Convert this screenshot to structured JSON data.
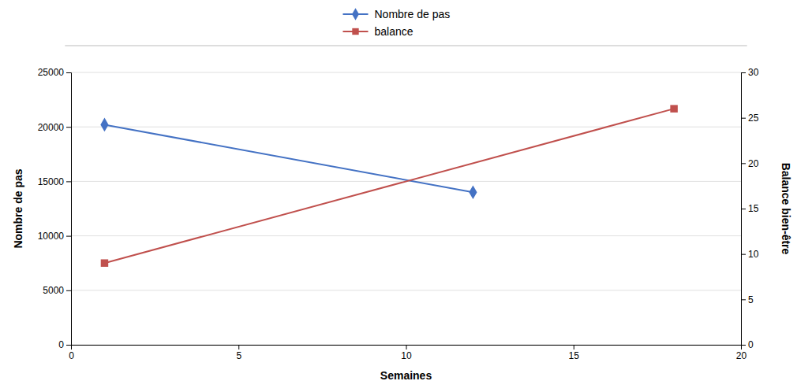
{
  "chart_data": {
    "type": "line",
    "xlabel": "Semaines",
    "ylabel": "Nombre de pas",
    "y2label": "Balance bien-être",
    "series": [
      {
        "name": "Nombre de pas",
        "color": "#4472C4",
        "marker": "diamond",
        "x": [
          1,
          12
        ],
        "values": [
          20200,
          14000
        ]
      },
      {
        "name": "balance",
        "color": "#C0504D",
        "marker": "square",
        "axis": "y2",
        "x": [
          1,
          18
        ],
        "values": [
          9,
          26
        ]
      }
    ],
    "xlim": [
      0,
      20
    ],
    "xticks": [
      0,
      5,
      10,
      15,
      20
    ],
    "ylim": [
      0,
      25000
    ],
    "yticks": [
      0,
      5000,
      10000,
      15000,
      20000,
      25000
    ],
    "y2lim": [
      0,
      30
    ],
    "y2ticks": [
      0,
      5,
      10,
      15,
      20,
      25,
      30
    ],
    "grid": true,
    "legend": "top"
  }
}
